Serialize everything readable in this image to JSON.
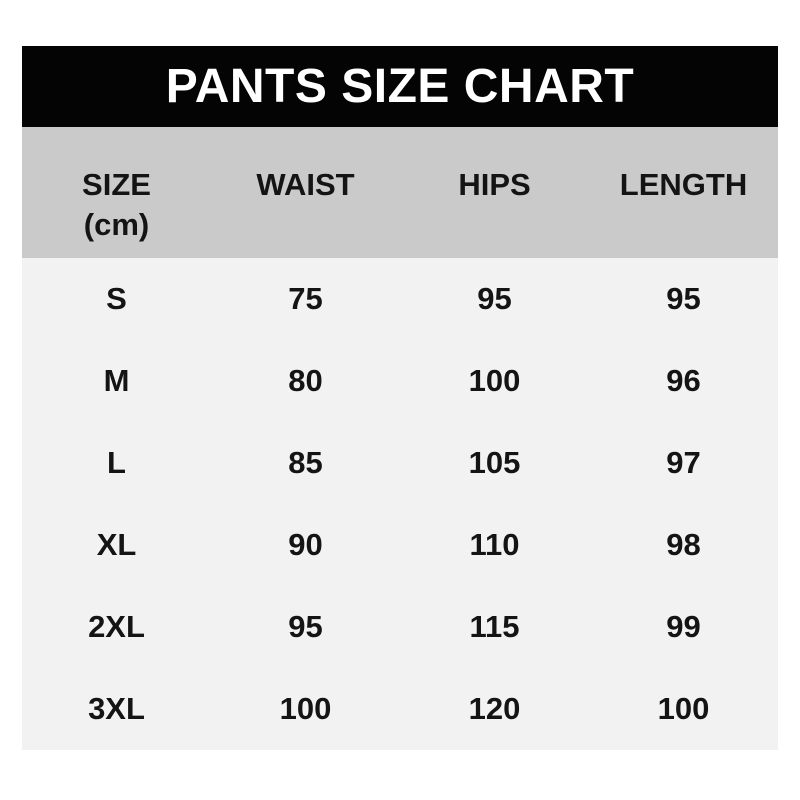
{
  "title": "PANTS SIZE CHART",
  "colors": {
    "page_bg": "#ffffff",
    "band_bg": "#040404",
    "band_text": "#ffffff",
    "header_bg": "#cacaca",
    "row_bg": "#f2f2f2",
    "text": "#141414"
  },
  "table_header": {
    "size_label": "SIZE",
    "size_unit": "(cm)",
    "waist": "WAIST",
    "hips": "HIPS",
    "length": "LENGTH"
  },
  "chart_data": {
    "type": "table",
    "title": "PANTS SIZE CHART",
    "unit": "cm",
    "columns": [
      "SIZE (cm)",
      "WAIST",
      "HIPS",
      "LENGTH"
    ],
    "rows": [
      [
        "S",
        "75",
        "95",
        "95"
      ],
      [
        "M",
        "80",
        "100",
        "96"
      ],
      [
        "L",
        "85",
        "105",
        "97"
      ],
      [
        "XL",
        "90",
        "110",
        "98"
      ],
      [
        "2XL",
        "95",
        "115",
        "99"
      ],
      [
        "3XL",
        "100",
        "120",
        "100"
      ]
    ]
  }
}
